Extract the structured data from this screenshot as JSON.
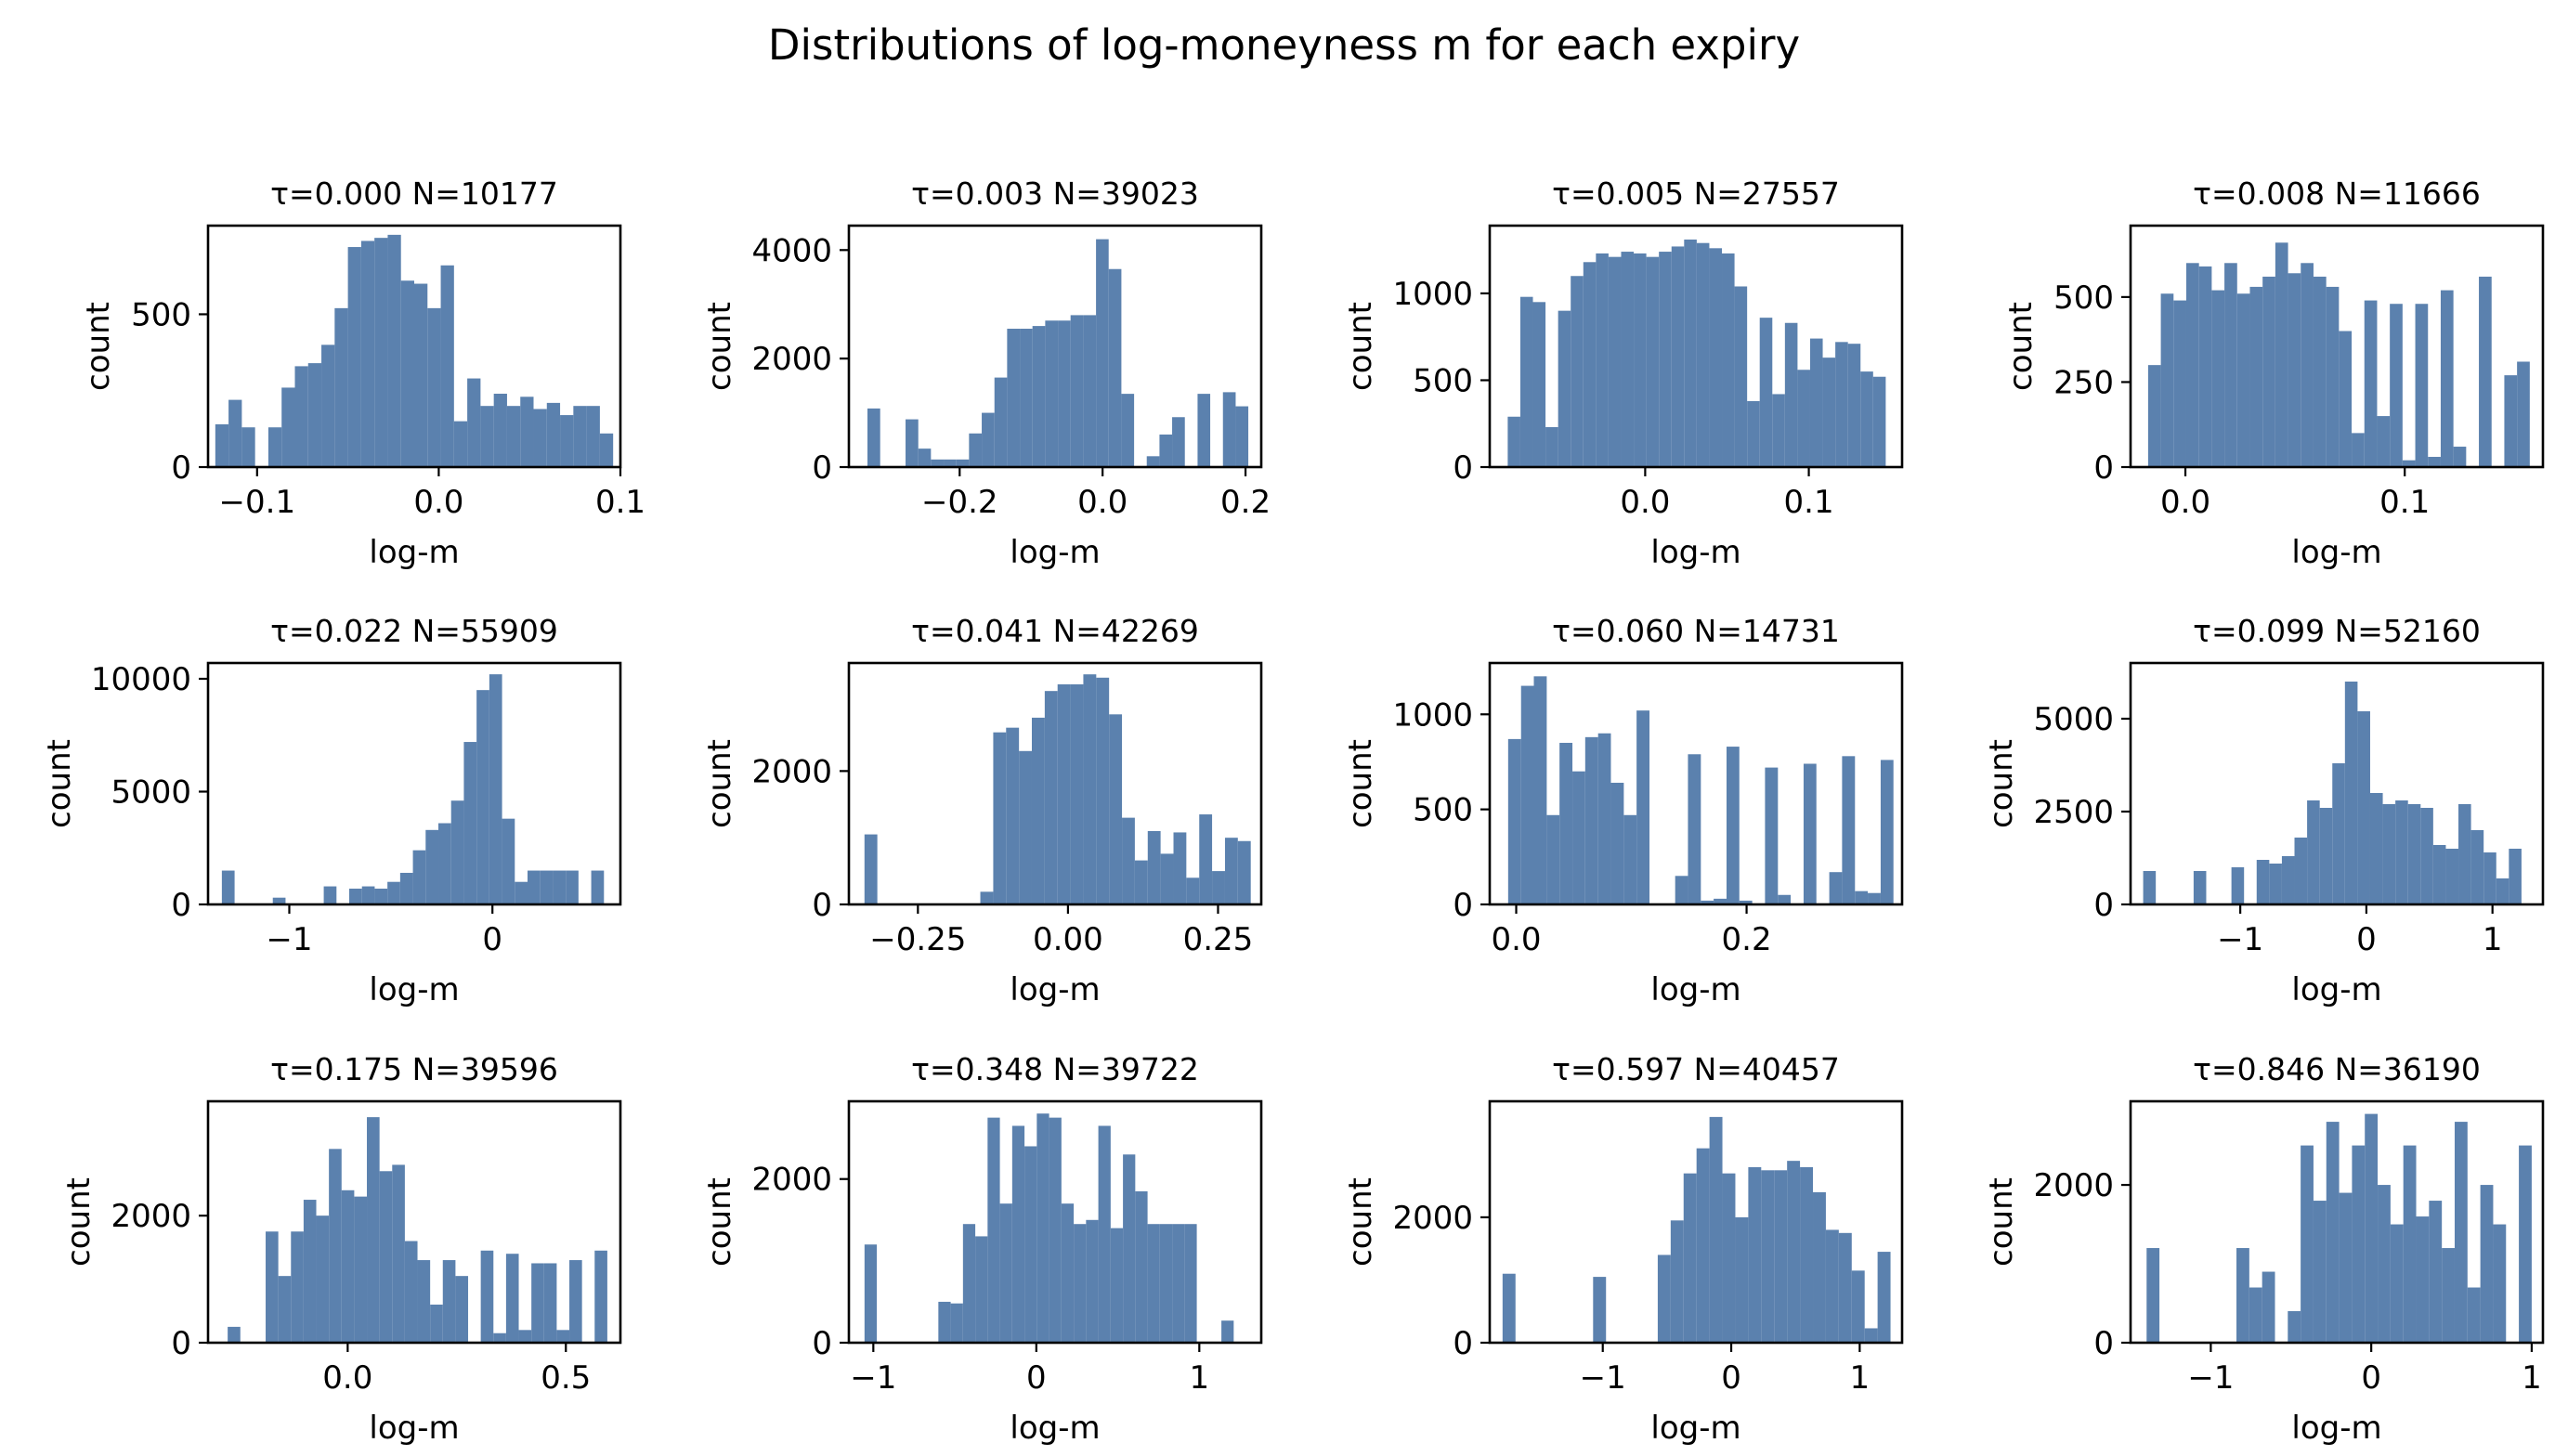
{
  "figure": {
    "title": "Distributions of log-moneyness m for each expiry",
    "bar_color": "#5b81ae"
  },
  "chart_data": [
    {
      "type": "bar",
      "title": "τ=0.000  N=10177",
      "xlabel": "log-m",
      "ylabel": "count",
      "xlim": [
        -0.127,
        0.1
      ],
      "ylim": [
        0,
        790
      ],
      "xticks": [
        -0.1,
        0.0,
        0.1
      ],
      "xticklabels": [
        "−0.1",
        "0.0",
        "0.1"
      ],
      "yticks": [
        0,
        500
      ],
      "yticklabels": [
        "0",
        "500"
      ],
      "bin_edges": [
        -0.123,
        -0.1157,
        -0.1084,
        -0.1011,
        -0.0938,
        -0.0865,
        -0.0792,
        -0.0719,
        -0.0646,
        -0.0573,
        -0.05,
        -0.0427,
        -0.0354,
        -0.0281,
        -0.0208,
        -0.0135,
        -0.0062,
        0.0011,
        0.0084,
        0.0157,
        0.023,
        0.0303,
        0.0376,
        0.0449,
        0.0522,
        0.0595,
        0.0668,
        0.0741,
        0.0814,
        0.0887,
        0.096
      ],
      "values": [
        140,
        220,
        130,
        0,
        130,
        260,
        330,
        340,
        400,
        520,
        720,
        740,
        750,
        760,
        610,
        600,
        520,
        660,
        150,
        290,
        200,
        240,
        200,
        230,
        190,
        210,
        170,
        200,
        200,
        110
      ]
    },
    {
      "type": "bar",
      "title": "τ=0.003  N=39023",
      "xlabel": "log-m",
      "ylabel": "count",
      "xlim": [
        -0.355,
        0.222
      ],
      "ylim": [
        0,
        4450
      ],
      "xticks": [
        -0.2,
        0.0,
        0.2
      ],
      "xticklabels": [
        "−0.2",
        "0.0",
        "0.2"
      ],
      "yticks": [
        0,
        2000,
        4000
      ],
      "yticklabels": [
        "0",
        "2000",
        "4000"
      ],
      "bin_edges": [
        -0.329,
        -0.3112,
        -0.2935,
        -0.2757,
        -0.2579,
        -0.2402,
        -0.2224,
        -0.2046,
        -0.1869,
        -0.1691,
        -0.1513,
        -0.1336,
        -0.1158,
        -0.0981,
        -0.0803,
        -0.0625,
        -0.0448,
        -0.027,
        -0.0092,
        0.0085,
        0.0263,
        0.0441,
        0.0618,
        0.0796,
        0.0973,
        0.1151,
        0.1329,
        0.1506,
        0.1684,
        0.1862,
        0.2039
      ],
      "values": [
        1080,
        0,
        0,
        880,
        340,
        140,
        140,
        140,
        620,
        1000,
        1650,
        2550,
        2550,
        2600,
        2700,
        2700,
        2800,
        2800,
        4200,
        3650,
        1350,
        0,
        200,
        600,
        920,
        0,
        1350,
        0,
        1380,
        1120
      ]
    },
    {
      "type": "bar",
      "title": "τ=0.005  N=27557",
      "xlabel": "log-m",
      "ylabel": "count",
      "xlim": [
        -0.095,
        0.157
      ],
      "ylim": [
        0,
        1390
      ],
      "xticks": [
        0.0,
        0.1
      ],
      "xticklabels": [
        "0.0",
        "0.1"
      ],
      "yticks": [
        0,
        500,
        1000
      ],
      "yticklabels": [
        "0",
        "500",
        "1000"
      ],
      "bin_edges": [
        -0.084,
        -0.0763,
        -0.0686,
        -0.0609,
        -0.0532,
        -0.0455,
        -0.0378,
        -0.0301,
        -0.0224,
        -0.0147,
        -0.007,
        0.0007,
        0.0084,
        0.0161,
        0.0238,
        0.0315,
        0.0392,
        0.0469,
        0.0546,
        0.0623,
        0.07,
        0.0777,
        0.0854,
        0.0931,
        0.1008,
        0.1085,
        0.1162,
        0.1239,
        0.1316,
        0.1393,
        0.147
      ],
      "values": [
        290,
        980,
        950,
        230,
        900,
        1100,
        1180,
        1230,
        1210,
        1240,
        1230,
        1210,
        1240,
        1270,
        1310,
        1290,
        1260,
        1230,
        1040,
        380,
        860,
        420,
        830,
        560,
        740,
        630,
        720,
        710,
        550,
        520
      ]
    },
    {
      "type": "bar",
      "title": "τ=0.008  N=11666",
      "xlabel": "log-m",
      "ylabel": "count",
      "xlim": [
        -0.025,
        0.163
      ],
      "ylim": [
        0,
        710
      ],
      "xticks": [
        0.0,
        0.1
      ],
      "xticklabels": [
        "0.0",
        "0.1"
      ],
      "yticks": [
        0,
        250,
        500
      ],
      "yticklabels": [
        "0",
        "250",
        "500"
      ],
      "bin_edges": [
        -0.017,
        -0.0112,
        -0.0054,
        0.0004,
        0.0062,
        0.012,
        0.0178,
        0.0236,
        0.0294,
        0.0352,
        0.041,
        0.0468,
        0.0526,
        0.0584,
        0.0642,
        0.07,
        0.0758,
        0.0816,
        0.0874,
        0.0932,
        0.099,
        0.1048,
        0.1106,
        0.1164,
        0.1222,
        0.128,
        0.1338,
        0.1396,
        0.1454,
        0.1512,
        0.157
      ],
      "values": [
        300,
        510,
        490,
        600,
        590,
        520,
        600,
        510,
        530,
        560,
        660,
        570,
        600,
        560,
        530,
        400,
        100,
        490,
        150,
        480,
        20,
        480,
        30,
        520,
        60,
        0,
        560,
        0,
        270,
        310
      ]
    },
    {
      "type": "bar",
      "title": "τ=0.022  N=55909",
      "xlabel": "log-m",
      "ylabel": "count",
      "xlim": [
        -1.4,
        0.63
      ],
      "ylim": [
        0,
        10700
      ],
      "xticks": [
        -1,
        0
      ],
      "xticklabels": [
        "−1",
        "0"
      ],
      "yticks": [
        0,
        5000,
        10000
      ],
      "yticklabels": [
        "0",
        "5000",
        "10000"
      ],
      "bin_edges": [
        -1.332,
        -1.2693,
        -1.2066,
        -1.1439,
        -1.0812,
        -1.0185,
        -0.9558,
        -0.8931,
        -0.8304,
        -0.7677,
        -0.705,
        -0.6423,
        -0.5796,
        -0.5169,
        -0.4542,
        -0.3915,
        -0.3288,
        -0.2661,
        -0.2034,
        -0.1407,
        -0.078,
        -0.0153,
        0.0474,
        0.1101,
        0.1728,
        0.2355,
        0.2982,
        0.3609,
        0.4236,
        0.4863,
        0.549
      ],
      "values": [
        1500,
        0,
        0,
        0,
        300,
        0,
        0,
        0,
        800,
        0,
        700,
        800,
        700,
        1000,
        1400,
        2400,
        3300,
        3600,
        4600,
        7200,
        9500,
        10200,
        3800,
        1000,
        1500,
        1500,
        1500,
        1500,
        0,
        1500
      ]
    },
    {
      "type": "bar",
      "title": "τ=0.041  N=42269",
      "xlabel": "log-m",
      "ylabel": "count",
      "xlim": [
        -0.365,
        0.322
      ],
      "ylim": [
        0,
        3620
      ],
      "xticks": [
        -0.25,
        0.0,
        0.25
      ],
      "xticklabels": [
        "−0.25",
        "0.00",
        "0.25"
      ],
      "yticks": [
        0,
        2000
      ],
      "yticklabels": [
        "0",
        "2000"
      ],
      "bin_edges": [
        -0.339,
        -0.3176,
        -0.2961,
        -0.2747,
        -0.2532,
        -0.2318,
        -0.2103,
        -0.1889,
        -0.1674,
        -0.146,
        -0.1245,
        -0.1031,
        -0.0816,
        -0.0602,
        -0.0387,
        -0.0173,
        0.0042,
        0.0256,
        0.0471,
        0.0685,
        0.09,
        0.1114,
        0.1329,
        0.1543,
        0.1758,
        0.1972,
        0.2187,
        0.2401,
        0.2616,
        0.283,
        0.3045
      ],
      "values": [
        1050,
        0,
        0,
        0,
        0,
        0,
        0,
        0,
        0,
        190,
        2580,
        2650,
        2300,
        2800,
        3200,
        3300,
        3300,
        3450,
        3400,
        2850,
        1300,
        660,
        1100,
        760,
        1080,
        400,
        1350,
        500,
        1000,
        950
      ]
    },
    {
      "type": "bar",
      "title": "τ=0.060  N=14731",
      "xlabel": "log-m",
      "ylabel": "count",
      "xlim": [
        -0.023,
        0.335
      ],
      "ylim": [
        0,
        1270
      ],
      "xticks": [
        0.0,
        0.2
      ],
      "xticklabels": [
        "0.0",
        "0.2"
      ],
      "yticks": [
        0,
        500,
        1000
      ],
      "yticklabels": [
        "0",
        "500",
        "1000"
      ],
      "bin_edges": [
        -0.007,
        0.0042,
        0.0153,
        0.0265,
        0.0376,
        0.0488,
        0.0599,
        0.0711,
        0.0822,
        0.0934,
        0.1045,
        0.1157,
        0.1268,
        0.138,
        0.1491,
        0.1603,
        0.1714,
        0.1826,
        0.1937,
        0.2049,
        0.216,
        0.2272,
        0.2383,
        0.2495,
        0.2606,
        0.2718,
        0.2829,
        0.2941,
        0.3052,
        0.3164,
        0.3275
      ],
      "values": [
        870,
        1150,
        1200,
        470,
        850,
        700,
        880,
        900,
        640,
        470,
        1020,
        0,
        0,
        150,
        790,
        20,
        30,
        830,
        20,
        0,
        720,
        50,
        0,
        740,
        0,
        170,
        780,
        70,
        60,
        760
      ]
    },
    {
      "type": "bar",
      "title": "τ=0.099  N=52160",
      "xlabel": "log-m",
      "ylabel": "count",
      "xlim": [
        -1.87,
        1.4
      ],
      "ylim": [
        0,
        6500
      ],
      "xticks": [
        -1,
        0,
        1
      ],
      "xticklabels": [
        "−1",
        "0",
        "1"
      ],
      "yticks": [
        0,
        2500,
        5000
      ],
      "yticklabels": [
        "0",
        "2500",
        "5000"
      ],
      "bin_edges": [
        -1.77,
        -1.67,
        -1.57,
        -1.47,
        -1.37,
        -1.27,
        -1.17,
        -1.07,
        -0.97,
        -0.87,
        -0.77,
        -0.67,
        -0.57,
        -0.47,
        -0.37,
        -0.27,
        -0.17,
        -0.07,
        0.03,
        0.13,
        0.23,
        0.33,
        0.43,
        0.53,
        0.63,
        0.73,
        0.83,
        0.93,
        1.03,
        1.13,
        1.23
      ],
      "values": [
        900,
        0,
        0,
        0,
        900,
        0,
        0,
        1000,
        0,
        1200,
        1100,
        1300,
        1800,
        2800,
        2600,
        3800,
        6000,
        5200,
        3000,
        2700,
        2800,
        2700,
        2600,
        1600,
        1500,
        2700,
        2000,
        1400,
        700,
        1500
      ]
    },
    {
      "type": "bar",
      "title": "τ=0.175  N=39596",
      "xlabel": "log-m",
      "ylabel": "count",
      "xlim": [
        -0.32,
        0.625
      ],
      "ylim": [
        0,
        3800
      ],
      "xticks": [
        0.0,
        0.5
      ],
      "xticklabels": [
        "0.0",
        "0.5"
      ],
      "yticks": [
        0,
        2000
      ],
      "yticklabels": [
        "0",
        "2000"
      ],
      "bin_edges": [
        -0.275,
        -0.246,
        -0.217,
        -0.188,
        -0.159,
        -0.13,
        -0.101,
        -0.072,
        -0.043,
        -0.014,
        0.015,
        0.044,
        0.073,
        0.102,
        0.131,
        0.16,
        0.189,
        0.218,
        0.247,
        0.276,
        0.305,
        0.334,
        0.363,
        0.392,
        0.421,
        0.45,
        0.479,
        0.508,
        0.537,
        0.566,
        0.595
      ],
      "values": [
        250,
        0,
        0,
        1750,
        1050,
        1750,
        2250,
        2000,
        3050,
        2400,
        2300,
        3550,
        2700,
        2800,
        1600,
        1300,
        600,
        1300,
        1050,
        0,
        1450,
        150,
        1400,
        200,
        1250,
        1250,
        200,
        1300,
        0,
        1450
      ]
    },
    {
      "type": "bar",
      "title": "τ=0.348  N=39722",
      "xlabel": "log-m",
      "ylabel": "count",
      "xlim": [
        -1.15,
        1.38
      ],
      "ylim": [
        0,
        2950
      ],
      "xticks": [
        -1,
        0,
        1
      ],
      "xticklabels": [
        "−1",
        "0",
        "1"
      ],
      "yticks": [
        0,
        2000
      ],
      "yticklabels": [
        "0",
        "2000"
      ],
      "bin_edges": [
        -1.054,
        -0.9785,
        -0.903,
        -0.8275,
        -0.752,
        -0.6765,
        -0.601,
        -0.5255,
        -0.45,
        -0.3745,
        -0.299,
        -0.2235,
        -0.148,
        -0.0725,
        0.003,
        0.0785,
        0.154,
        0.2295,
        0.305,
        0.3805,
        0.456,
        0.5315,
        0.607,
        0.6825,
        0.758,
        0.8335,
        0.909,
        0.9845,
        1.06,
        1.1355,
        1.211
      ],
      "values": [
        1200,
        0,
        0,
        0,
        0,
        0,
        500,
        480,
        1450,
        1300,
        2750,
        1700,
        2650,
        2400,
        2800,
        2750,
        1700,
        1450,
        1500,
        2650,
        1400,
        2300,
        1850,
        1450,
        1450,
        1450,
        1450,
        0,
        0,
        270
      ]
    },
    {
      "type": "bar",
      "title": "τ=0.597  N=40457",
      "xlabel": "log-m",
      "ylabel": "count",
      "xlim": [
        -1.88,
        1.33
      ],
      "ylim": [
        0,
        3850
      ],
      "xticks": [
        -1,
        0,
        1
      ],
      "xticklabels": [
        "−1",
        "0",
        "1"
      ],
      "yticks": [
        0,
        2000
      ],
      "yticklabels": [
        "0",
        "2000"
      ],
      "bin_edges": [
        -1.78,
        -1.6793,
        -1.5787,
        -1.478,
        -1.3773,
        -1.2767,
        -1.176,
        -1.0753,
        -0.9747,
        -0.874,
        -0.7733,
        -0.6727,
        -0.572,
        -0.4713,
        -0.3707,
        -0.27,
        -0.1693,
        -0.0687,
        0.032,
        0.1327,
        0.2333,
        0.334,
        0.4347,
        0.5353,
        0.636,
        0.7367,
        0.8373,
        0.938,
        1.0387,
        1.1393,
        1.24
      ],
      "values": [
        1100,
        0,
        0,
        0,
        0,
        0,
        0,
        1050,
        0,
        0,
        0,
        0,
        1400,
        1950,
        2700,
        3100,
        3600,
        2700,
        2000,
        2800,
        2750,
        2750,
        2900,
        2800,
        2400,
        1800,
        1750,
        1150,
        230,
        1450
      ]
    },
    {
      "type": "bar",
      "title": "τ=0.846  N=36190",
      "xlabel": "log-m",
      "ylabel": "count",
      "xlim": [
        -1.5,
        1.07
      ],
      "ylim": [
        0,
        3060
      ],
      "xticks": [
        -1,
        0,
        1
      ],
      "xticklabels": [
        "−1",
        "0",
        "1"
      ],
      "yticks": [
        0,
        2000
      ],
      "yticklabels": [
        "0",
        "2000"
      ],
      "bin_edges": [
        -1.4,
        -1.32,
        -1.24,
        -1.16,
        -1.08,
        -1.0,
        -0.92,
        -0.84,
        -0.76,
        -0.68,
        -0.6,
        -0.52,
        -0.44,
        -0.36,
        -0.28,
        -0.2,
        -0.12,
        -0.04,
        0.04,
        0.12,
        0.2,
        0.28,
        0.36,
        0.44,
        0.52,
        0.6,
        0.68,
        0.76,
        0.84,
        0.92,
        1.0
      ],
      "values": [
        1200,
        0,
        0,
        0,
        0,
        0,
        0,
        1200,
        700,
        900,
        0,
        400,
        2500,
        1800,
        2800,
        1900,
        2500,
        2900,
        2000,
        1500,
        2500,
        1600,
        1800,
        1200,
        2800,
        700,
        2000,
        1500,
        0,
        2500
      ]
    }
  ]
}
